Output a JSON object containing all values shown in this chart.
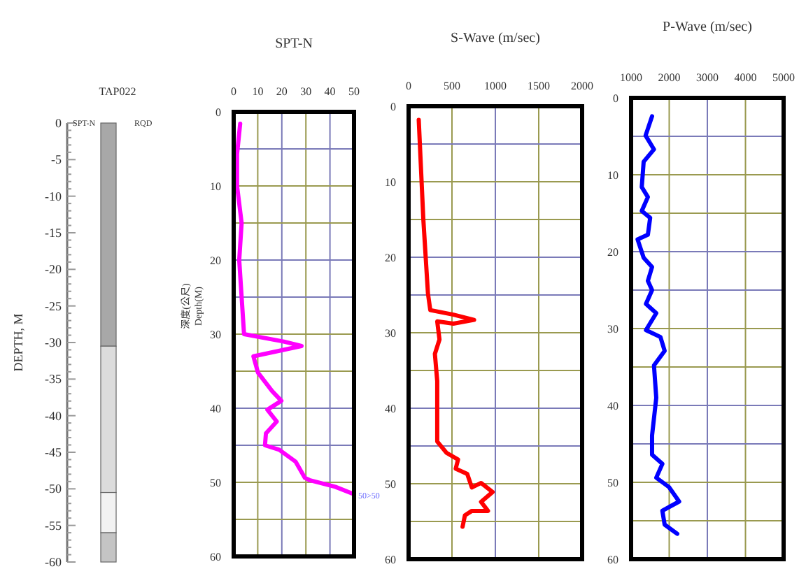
{
  "chart_data": [
    {
      "type": "bar",
      "stacked": true,
      "categories": [
        null
      ],
      "title": "TAP022",
      "ylabel": "DEPTH, M",
      "ylim": [
        -60,
        0
      ],
      "series": [
        {
          "color": "#a8a8a8",
          "values": [
            -30.5
          ]
        },
        {
          "color": "#dcdcdc",
          "values": [
            -20
          ]
        },
        {
          "color": "#f2f2f2",
          "values": [
            -5.5
          ]
        },
        {
          "color": "#c4c4c4",
          "values": [
            -4
          ]
        }
      ],
      "yticks": [
        0,
        -5,
        -10,
        -15,
        -20,
        -25,
        -30,
        -35,
        -40,
        -45,
        -50,
        -55,
        -60
      ],
      "annotations": [
        "SPT-N",
        "RQD"
      ]
    },
    {
      "type": "line",
      "title": "SPT-N",
      "ylabel": "深度(公尺)\nDepth(M)",
      "xlim": [
        0,
        50
      ],
      "xticks": [
        0,
        10,
        20,
        30,
        40,
        50
      ],
      "ylim": [
        60,
        0
      ],
      "yticks": [
        0,
        {
          "value": 5,
          "label": null
        },
        10,
        {
          "value": 15,
          "label": null
        },
        20,
        {
          "value": 25,
          "label": null
        },
        30,
        {
          "value": 35,
          "label": null
        },
        40,
        {
          "value": 45,
          "label": null
        },
        50,
        {
          "value": 55,
          "label": null
        },
        60
      ],
      "grid": true,
      "annotations": [
        {
          "text": "50>50",
          "x": 50,
          "y": 51.6
        }
      ],
      "series": [
        {
          "color": "#ff00ff",
          "x": [
            2.7,
            1.4,
            1.4,
            3.3,
            2.3,
            3.3,
            4.3,
            20.8,
            28.2,
            8.2,
            10.1,
            16,
            19.8,
            14,
            17.9,
            13.4,
            13,
            18.9,
            25.7,
            29.6,
            31.5,
            42.2,
            50
          ],
          "values": [
            1.6,
            5.7,
            10,
            15,
            20,
            25,
            30,
            31,
            31.6,
            33,
            35.2,
            37.7,
            39,
            40.2,
            41.8,
            43.4,
            45,
            45.6,
            47.2,
            49.4,
            49.7,
            50.6,
            51.6
          ]
        }
      ]
    },
    {
      "type": "line",
      "title": "S-Wave (m/sec)",
      "xlim": [
        0,
        2000
      ],
      "xticks": [
        0,
        500,
        1000,
        1500,
        2000
      ],
      "ylim": [
        60,
        0
      ],
      "yticks": [
        0,
        {
          "value": 5,
          "label": null
        },
        10,
        {
          "value": 15,
          "label": null
        },
        20,
        {
          "value": 25,
          "label": null
        },
        30,
        {
          "value": 35,
          "label": null
        },
        40,
        {
          "value": 45,
          "label": null
        },
        50,
        {
          "value": 55,
          "label": null
        },
        60
      ],
      "grid": true,
      "series": [
        {
          "color": "#ff0000",
          "x": [
            117,
            170,
            223,
            250,
            516,
            755,
            516,
            330,
            356,
            303,
            330,
            330,
            436,
            570,
            543,
            676,
            729,
            835,
            968,
            835,
            915,
            729,
            649,
            622
          ],
          "values": [
            1.8,
            15,
            24.8,
            27,
            27.6,
            28.3,
            28.8,
            28.5,
            30.9,
            32.8,
            36.4,
            44.4,
            45.9,
            46.8,
            48,
            48.7,
            50.5,
            49.9,
            51.1,
            52.4,
            53.6,
            53.6,
            54.2,
            55.7
          ]
        }
      ]
    },
    {
      "type": "line",
      "title": "P-Wave (m/sec)",
      "xlim": [
        1000,
        5000
      ],
      "xticks": [
        1000,
        2000,
        3000,
        4000,
        5000
      ],
      "ylim": [
        60,
        0
      ],
      "yticks": [
        0,
        {
          "value": 5,
          "label": null
        },
        10,
        {
          "value": 15,
          "label": null
        },
        20,
        {
          "value": 25,
          "label": null
        },
        30,
        {
          "value": 35,
          "label": null
        },
        40,
        {
          "value": 45,
          "label": null
        },
        50,
        {
          "value": 55,
          "label": null
        },
        60
      ],
      "grid": true,
      "series": [
        {
          "color": "#0000ff",
          "x": [
            1550,
            1380,
            1600,
            1330,
            1280,
            1440,
            1280,
            1500,
            1440,
            1170,
            1330,
            1550,
            1440,
            1550,
            1390,
            1660,
            1390,
            1770,
            1880,
            1600,
            1660,
            1550,
            1550,
            1820,
            1660,
            1990,
            2260,
            1820,
            1880,
            2210
          ],
          "values": [
            2.4,
            4.9,
            6.7,
            8.3,
            11.6,
            12.9,
            14.7,
            15.6,
            17.8,
            18.4,
            20.8,
            22,
            23.8,
            25,
            26.8,
            28,
            30.2,
            31.1,
            32.9,
            34.8,
            39,
            43.9,
            46.4,
            47.6,
            49.4,
            50.6,
            52.5,
            53.7,
            55.5,
            56.7
          ]
        }
      ]
    }
  ]
}
